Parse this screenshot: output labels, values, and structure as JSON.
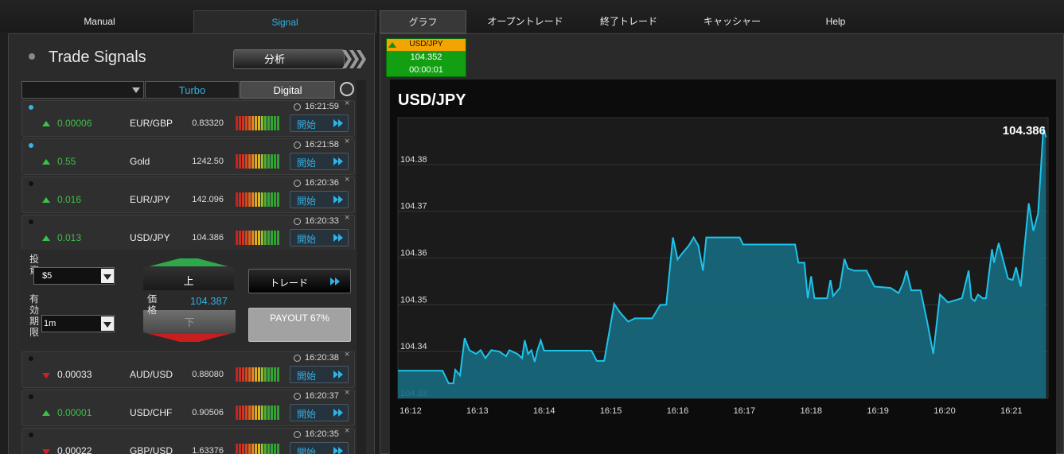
{
  "nav": {
    "tabs": [
      "Manual",
      "Signal",
      "グラフ",
      "オープントレード",
      "終了トレード",
      "キャッシャー",
      "Help"
    ]
  },
  "signals_panel": {
    "title": "Trade Signals",
    "analysis_button": "分析",
    "tabs": [
      "Turbo",
      "Digital"
    ]
  },
  "signals": [
    {
      "time": "16:21:59",
      "direction": "up",
      "change": "0.00006",
      "pair": "EUR/GBP",
      "price": "0.83320",
      "button": "開始",
      "highlight": true
    },
    {
      "time": "16:21:58",
      "direction": "up",
      "change": "0.55",
      "pair": "Gold",
      "price": "1242.50",
      "button": "開始",
      "highlight": true
    },
    {
      "time": "16:20:36",
      "direction": "up",
      "change": "0.016",
      "pair": "EUR/JPY",
      "price": "142.096",
      "button": "開始",
      "highlight": false
    },
    {
      "time": "16:20:33",
      "direction": "up",
      "change": "0.013",
      "pair": "USD/JPY",
      "price": "104.386",
      "button": "開始",
      "highlight": false
    },
    {
      "time": "16:20:38",
      "direction": "down",
      "change": "0.00033",
      "pair": "AUD/USD",
      "price": "0.88080",
      "button": "開始",
      "highlight": false
    },
    {
      "time": "16:20:37",
      "direction": "up",
      "change": "0.00001",
      "pair": "USD/CHF",
      "price": "0.90506",
      "button": "開始",
      "highlight": false
    },
    {
      "time": "16:20:35",
      "direction": "down",
      "change": "0.00022",
      "pair": "GBP/USD",
      "price": "1.63376",
      "button": "開始",
      "highlight": false
    }
  ],
  "trade_form": {
    "investment_label": "投資",
    "investment": "$5",
    "expiry_label": "有効期限",
    "expiry": "1m",
    "up": "上",
    "down": "下",
    "price_label": "価格",
    "price": "104.387",
    "trade_button": "トレード",
    "payout": "PAYOUT 67%"
  },
  "ticker": {
    "pair": "USD/JPY",
    "price": "104.352",
    "timer": "00:00:01"
  },
  "chart_data": {
    "type": "area",
    "title": "USD/JPY",
    "annotation": "104.386",
    "color": "#1ec3ea",
    "fill": "#176a7e",
    "x": [
      971.81,
      972.48,
      972.57,
      972.64,
      972.67,
      972.74,
      972.81,
      972.88,
      972.98,
      973.05,
      973.12,
      973.21,
      973.33,
      973.43,
      973.48,
      973.6,
      973.67,
      973.71,
      973.76,
      973.81,
      973.86,
      973.9,
      973.95,
      974.0,
      974.71,
      974.79,
      974.9,
      975.05,
      975.14,
      975.26,
      975.36,
      975.62,
      975.74,
      975.83,
      975.93,
      976.0,
      976.07,
      976.17,
      976.24,
      976.31,
      976.38,
      976.43,
      976.93,
      976.98,
      977.76,
      977.81,
      977.9,
      977.95,
      978.0,
      978.05,
      978.24,
      978.29,
      978.33,
      978.43,
      978.5,
      978.55,
      978.64,
      978.83,
      978.95,
      979.19,
      979.31,
      979.38,
      979.43,
      979.5,
      979.64,
      979.74,
      979.83,
      979.93,
      980.05,
      980.26,
      980.36,
      980.4,
      980.45,
      980.5,
      980.57,
      980.62,
      980.71,
      980.74,
      980.81,
      980.95,
      981.02,
      981.07,
      981.14,
      981.26,
      981.33,
      981.4,
      981.48,
      981.52
    ],
    "values": [
      104.3359,
      104.3359,
      104.3332,
      104.3332,
      104.3361,
      104.3349,
      104.3429,
      104.3403,
      104.3395,
      104.3403,
      104.3386,
      104.3403,
      104.34,
      104.339,
      104.3403,
      104.3395,
      104.3386,
      104.3424,
      104.3395,
      104.3403,
      104.3378,
      104.3403,
      104.3424,
      104.3402,
      104.3402,
      104.338,
      104.338,
      104.3502,
      104.3483,
      104.3464,
      104.3471,
      104.3471,
      104.35,
      104.35,
      104.3644,
      104.3597,
      104.361,
      104.3627,
      104.3644,
      104.3627,
      104.3573,
      104.3644,
      104.3644,
      104.3629,
      104.3629,
      104.359,
      104.359,
      104.3514,
      104.3561,
      104.3514,
      104.3514,
      104.3553,
      104.3519,
      104.3536,
      104.3598,
      104.3578,
      104.3573,
      104.3573,
      104.3539,
      104.3536,
      104.3525,
      104.3547,
      104.3573,
      104.3531,
      104.3531,
      104.3463,
      104.3395,
      104.3522,
      104.3505,
      104.3514,
      104.3573,
      104.3514,
      104.3508,
      104.3522,
      104.3514,
      104.3514,
      104.3619,
      104.359,
      104.3632,
      104.3556,
      104.3553,
      104.358,
      104.3539,
      104.3717,
      104.3658,
      104.3695,
      104.3878,
      104.3858
    ],
    "xlim": [
      971.81,
      981.55
    ],
    "ylim": [
      104.33,
      104.39
    ],
    "xticks": [
      {
        "value": 972,
        "label": "16:12"
      },
      {
        "value": 973,
        "label": "16:13"
      },
      {
        "value": 974,
        "label": "16:14"
      },
      {
        "value": 975,
        "label": "16:15"
      },
      {
        "value": 976,
        "label": "16:16"
      },
      {
        "value": 977,
        "label": "16:17"
      },
      {
        "value": 978,
        "label": "16:18"
      },
      {
        "value": 979,
        "label": "16:19"
      },
      {
        "value": 980,
        "label": "16:20"
      },
      {
        "value": 981,
        "label": "16:21"
      }
    ],
    "yticks": [
      104.33,
      104.34,
      104.35,
      104.36,
      104.37,
      104.38
    ],
    "grid": true
  }
}
